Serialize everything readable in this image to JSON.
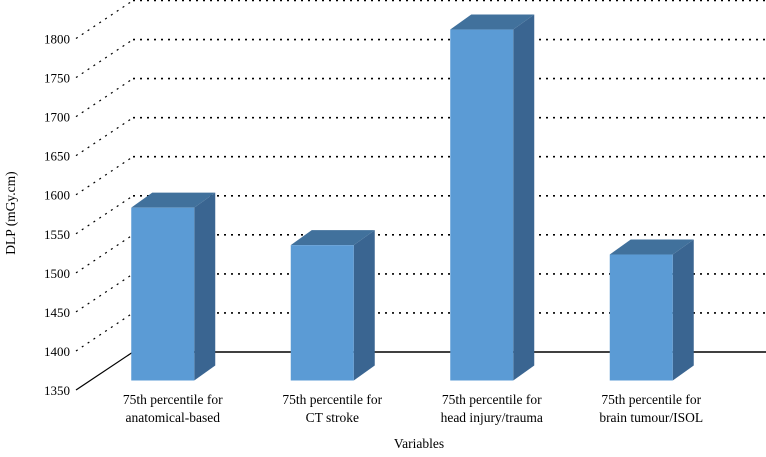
{
  "chart_data": {
    "type": "bar",
    "title": "",
    "xlabel": "Variables",
    "ylabel": "DLP (mGy.cm)",
    "ylim": [
      1350,
      1800
    ],
    "yticks": [
      1350,
      1400,
      1450,
      1500,
      1550,
      1600,
      1650,
      1700,
      1750,
      1800
    ],
    "grid": true,
    "categories": [
      [
        "75th percentile for",
        "anatomical-based"
      ],
      [
        "75th percentile for",
        "CT stroke"
      ],
      [
        "75th percentile for",
        "head injury/trauma"
      ],
      [
        "75th percentile for",
        "brain tumour/ISOL"
      ]
    ],
    "values": [
      1570,
      1522,
      1798,
      1510
    ],
    "colors": {
      "bar_front": "#5b9bd5",
      "bar_top": "#41719c",
      "bar_side": "#3a6591"
    }
  }
}
